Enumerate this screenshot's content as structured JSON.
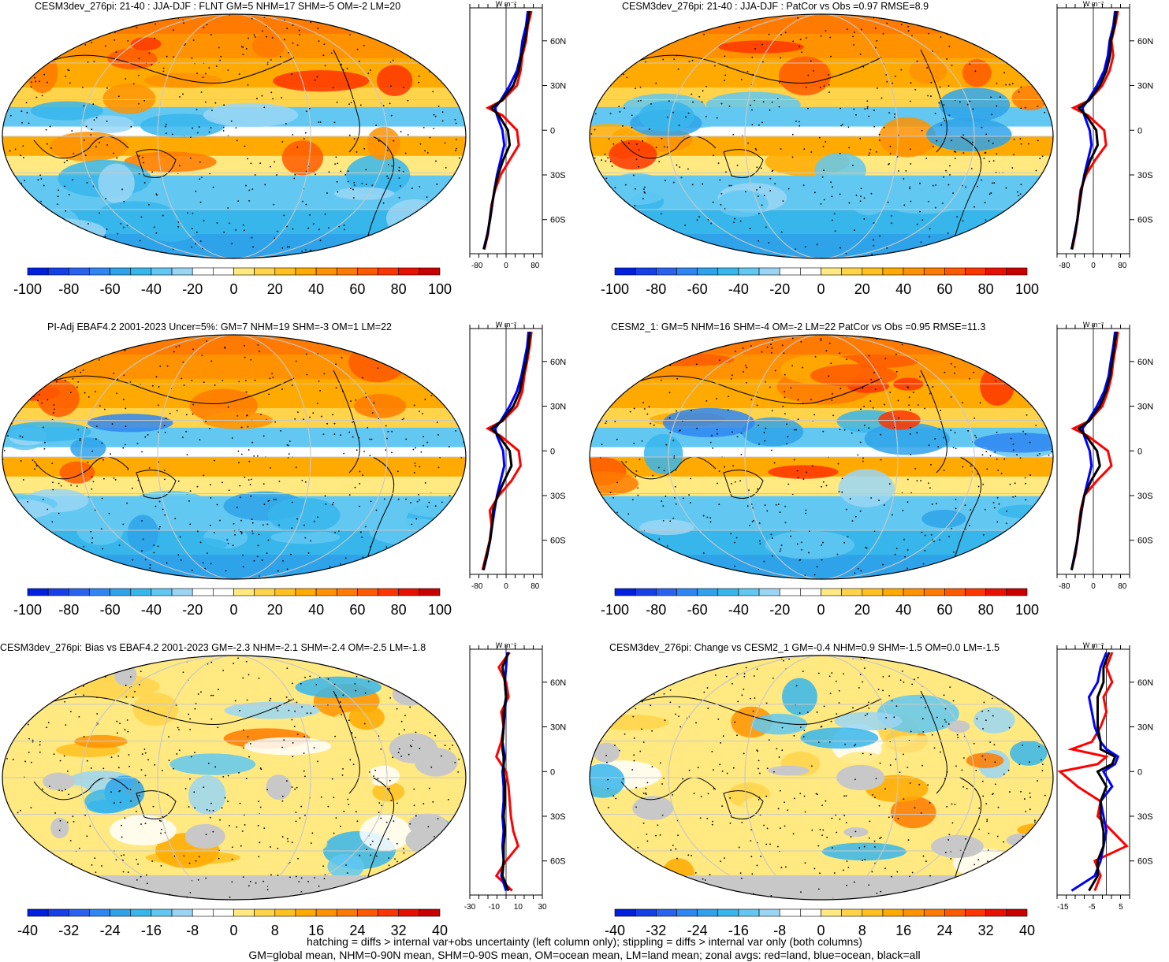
{
  "footer": {
    "line1": "hatching = diffs > internal var+obs uncertainty (left column only); stippling = diffs > internal var only (both columns)",
    "line2": "GM=global mean, NHM=0-90N mean, SHM=0-90S mean, OM=ocean mean, LM=land mean; zonal avgs: red=land, blue=ocean, black=all"
  },
  "palette": {
    "main": [
      "#0020e0",
      "#1540e8",
      "#2a62f0",
      "#2f86f2",
      "#2fa3ea",
      "#37b6ec",
      "#62c8f2",
      "#9ad6f4",
      "#ffffff",
      "#ffffff",
      "#ffe980",
      "#ffd34a",
      "#ffc020",
      "#ffaa00",
      "#ff9200",
      "#ff7a00",
      "#ff5a00",
      "#ff3500",
      "#e81000",
      "#c80000"
    ],
    "land_gray": "#c8c8c8",
    "line_land": "#ff0000",
    "line_ocean": "#0000ff",
    "line_all": "#000000"
  },
  "zonal_unit": "W m⁻²",
  "lat_ticks": [
    "60N",
    "30N",
    "0",
    "30S",
    "60S"
  ],
  "chart_data": [
    {
      "type": "heatmap",
      "title": "CESM3dev_276pi: 21-40 : JJA-DJF : FLNT GM=5 NHM=17 SHM=-5 OM=-2 LM=20",
      "variant": "field",
      "colorbar_ticks": [
        "-100",
        "-80",
        "-60",
        "-40",
        "-20",
        "0",
        "20",
        "40",
        "60",
        "80",
        "100"
      ],
      "zonal_xticks": [
        "-80",
        "0",
        "80"
      ],
      "zonal_xlim": [
        -100,
        100
      ],
      "zonal": {
        "lat": [
          -80,
          -70,
          -60,
          -50,
          -40,
          -30,
          -20,
          -10,
          0,
          10,
          15,
          20,
          30,
          40,
          50,
          60,
          70,
          80
        ],
        "land": [
          -60,
          -50,
          -45,
          -40,
          -30,
          -15,
          10,
          35,
          30,
          -10,
          -50,
          -10,
          30,
          40,
          45,
          55,
          60,
          70
        ],
        "ocean": [
          -62,
          -52,
          -44,
          -38,
          -32,
          -25,
          -15,
          -5,
          -10,
          -25,
          -30,
          -15,
          10,
          30,
          40,
          45,
          55,
          60
        ],
        "all": [
          -61,
          -51,
          -45,
          -39,
          -32,
          -22,
          -8,
          10,
          5,
          -20,
          -40,
          -12,
          20,
          35,
          42,
          52,
          58,
          65
        ]
      }
    },
    {
      "type": "heatmap",
      "title": "CESM3dev_276pi: 21-40 : JJA-DJF : PatCor vs Obs =0.97 RMSE=8.9",
      "variant": "field",
      "colorbar_ticks": [
        "-100",
        "-80",
        "-60",
        "-40",
        "-20",
        "0",
        "20",
        "40",
        "60",
        "80",
        "100"
      ],
      "zonal_xticks": [
        "-80",
        "0",
        "80"
      ],
      "zonal_xlim": [
        -100,
        100
      ],
      "zonal": {
        "lat": [
          -80,
          -70,
          -60,
          -50,
          -40,
          -30,
          -20,
          -10,
          0,
          10,
          15,
          20,
          30,
          40,
          50,
          60,
          70,
          80
        ],
        "land": [
          -58,
          -50,
          -44,
          -40,
          -35,
          -20,
          5,
          35,
          30,
          -15,
          -55,
          -12,
          25,
          45,
          55,
          50,
          60,
          68
        ],
        "ocean": [
          -60,
          -52,
          -44,
          -38,
          -32,
          -25,
          -15,
          -5,
          -10,
          -25,
          -30,
          -15,
          10,
          30,
          40,
          45,
          55,
          60
        ],
        "all": [
          -60,
          -51,
          -44,
          -39,
          -33,
          -23,
          -8,
          12,
          8,
          -20,
          -40,
          -12,
          18,
          36,
          46,
          48,
          58,
          64
        ]
      }
    },
    {
      "type": "heatmap",
      "title": "PI-Adj EBAF4.2 2001-2023 Uncer=5%: GM=7 NHM=19 SHM=-3 OM=1 LM=22",
      "variant": "field",
      "colorbar_ticks": [
        "-100",
        "-80",
        "-60",
        "-40",
        "-20",
        "0",
        "20",
        "40",
        "60",
        "80",
        "100"
      ],
      "zonal_xticks": [
        "-80",
        "0",
        "80"
      ],
      "zonal_xlim": [
        -100,
        100
      ],
      "zonal": {
        "lat": [
          -80,
          -70,
          -60,
          -50,
          -40,
          -30,
          -20,
          -10,
          0,
          10,
          15,
          20,
          30,
          40,
          50,
          60,
          70,
          80
        ],
        "land": [
          -65,
          -55,
          -45,
          -40,
          -45,
          -20,
          15,
          40,
          35,
          -15,
          -50,
          -10,
          30,
          45,
          50,
          58,
          65,
          70
        ],
        "ocean": [
          -62,
          -52,
          -44,
          -38,
          -32,
          -25,
          -15,
          -5,
          -8,
          -25,
          -30,
          -15,
          10,
          30,
          42,
          50,
          58,
          62
        ],
        "all": [
          -63,
          -53,
          -44,
          -39,
          -36,
          -23,
          -5,
          15,
          10,
          -20,
          -40,
          -12,
          20,
          38,
          46,
          55,
          62,
          66
        ]
      }
    },
    {
      "type": "heatmap",
      "title": "CESM2_1: GM=5 NHM=16 SHM=-4 OM=-2 LM=22 PatCor vs Obs =0.95 RMSE=11.3",
      "variant": "field",
      "colorbar_ticks": [
        "-100",
        "-80",
        "-60",
        "-40",
        "-20",
        "0",
        "20",
        "40",
        "60",
        "80",
        "100"
      ],
      "zonal_xticks": [
        "-80",
        "0",
        "80"
      ],
      "zonal_xlim": [
        -100,
        100
      ],
      "zonal": {
        "lat": [
          -80,
          -70,
          -60,
          -50,
          -40,
          -30,
          -20,
          -10,
          0,
          10,
          15,
          20,
          30,
          40,
          50,
          60,
          70,
          80
        ],
        "land": [
          -60,
          -50,
          -44,
          -40,
          -35,
          -25,
          10,
          50,
          40,
          -15,
          -55,
          -12,
          25,
          40,
          50,
          55,
          62,
          68
        ],
        "ocean": [
          -60,
          -52,
          -44,
          -38,
          -32,
          -25,
          -15,
          -5,
          -10,
          -25,
          -30,
          -15,
          10,
          30,
          42,
          48,
          55,
          60
        ],
        "all": [
          -60,
          -51,
          -44,
          -39,
          -33,
          -25,
          -6,
          18,
          10,
          -20,
          -40,
          -12,
          18,
          35,
          46,
          52,
          58,
          64
        ]
      }
    },
    {
      "type": "heatmap",
      "title": "CESM3dev_276pi: Bias vs EBAF4.2 2001-2023 GM=-2.3 NHM=-2.1 SHM=-2.4 OM=-2.5 LM=-1.8",
      "variant": "bias",
      "colorbar_ticks": [
        "-40",
        "-32",
        "-24",
        "-16",
        "-8",
        "0",
        "8",
        "16",
        "24",
        "32",
        "40"
      ],
      "zonal_xticks": [
        "-30",
        "-10",
        "10",
        "30"
      ],
      "zonal_xlim": [
        -30,
        30
      ],
      "zonal": {
        "lat": [
          -80,
          -70,
          -60,
          -50,
          -40,
          -30,
          -20,
          -10,
          0,
          10,
          15,
          20,
          30,
          40,
          50,
          60,
          70,
          80
        ],
        "land": [
          5,
          -8,
          0,
          10,
          6,
          4,
          3,
          2,
          0,
          -8,
          -6,
          -4,
          -2,
          -4,
          2,
          0,
          -6,
          3
        ],
        "ocean": [
          0,
          -4,
          -2,
          -3,
          -2,
          -3,
          -2,
          -2,
          -3,
          -1,
          -2,
          -3,
          -2,
          -1,
          0,
          -1,
          0,
          1
        ],
        "all": [
          2,
          -3,
          -2,
          -2,
          -1,
          -2,
          -1,
          -1,
          -2,
          -2,
          -3,
          -3,
          -2,
          -2,
          0,
          -1,
          -3,
          2
        ]
      }
    },
    {
      "type": "heatmap",
      "title": "CESM3dev_276pi: Change vs CESM2_1 GM=-0.4 NHM=0.9 SHM=-1.5 OM=0.0 LM=-1.5",
      "variant": "change",
      "colorbar_ticks": [
        "-40",
        "-32",
        "-24",
        "-16",
        "-8",
        "0",
        "8",
        "16",
        "24",
        "32",
        "40"
      ],
      "zonal_xticks": [
        "-15",
        "-5",
        "5"
      ],
      "zonal_xlim": [
        -17,
        8
      ],
      "zonal": {
        "lat": [
          -80,
          -70,
          -60,
          -50,
          -40,
          -30,
          -20,
          -10,
          0,
          5,
          10,
          15,
          20,
          30,
          40,
          50,
          60,
          70,
          80
        ],
        "land": [
          -4,
          -2,
          -4,
          7,
          2,
          -3,
          -2,
          -10,
          -16,
          -3,
          0,
          -12,
          -5,
          -2,
          0,
          -1,
          2,
          0,
          2
        ],
        "ocean": [
          -12,
          -4,
          -2,
          -1,
          0,
          -1,
          -2,
          2,
          -1,
          3,
          4,
          0,
          -2,
          -4,
          -5,
          -6,
          -3,
          -2,
          0
        ],
        "all": [
          -6,
          -3,
          -3,
          -1,
          -1,
          -2,
          -2,
          0,
          -3,
          2,
          3,
          -2,
          -2,
          -3,
          -3,
          -3,
          -1,
          -1,
          1
        ]
      }
    }
  ]
}
